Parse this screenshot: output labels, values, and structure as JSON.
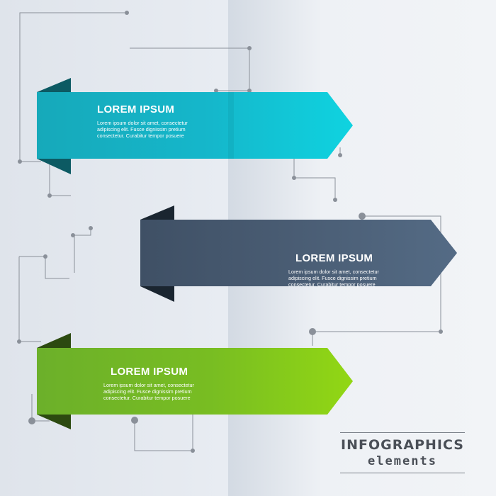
{
  "colors": {
    "teal": "#1ab3c6",
    "slate": "#4a5d74",
    "green": "#7fc21f",
    "line": "#8a9099"
  },
  "arrows": [
    {
      "title": "LOREM IPSUM",
      "desc": "Lorem ipsum dolor sit amet, consectetur adipiscing elit. Fusce dignissim pretium consectetur. Curabitur tempor posuere"
    },
    {
      "title": "LOREM IPSUM",
      "desc": "Lorem ipsum dolor sit amet, consectetur adipiscing elit. Fusce dignissim pretium consectetur. Curabitur tempor posuere"
    },
    {
      "title": "LOREM IPSUM",
      "desc": "Lorem ipsum dolor sit amet, consectetur adipiscing elit. Fusce dignissim pretium consectetur. Curabitur tempor posuere"
    }
  ],
  "brand": {
    "line1": "INFOGRAPHICS",
    "line2": "elements"
  }
}
